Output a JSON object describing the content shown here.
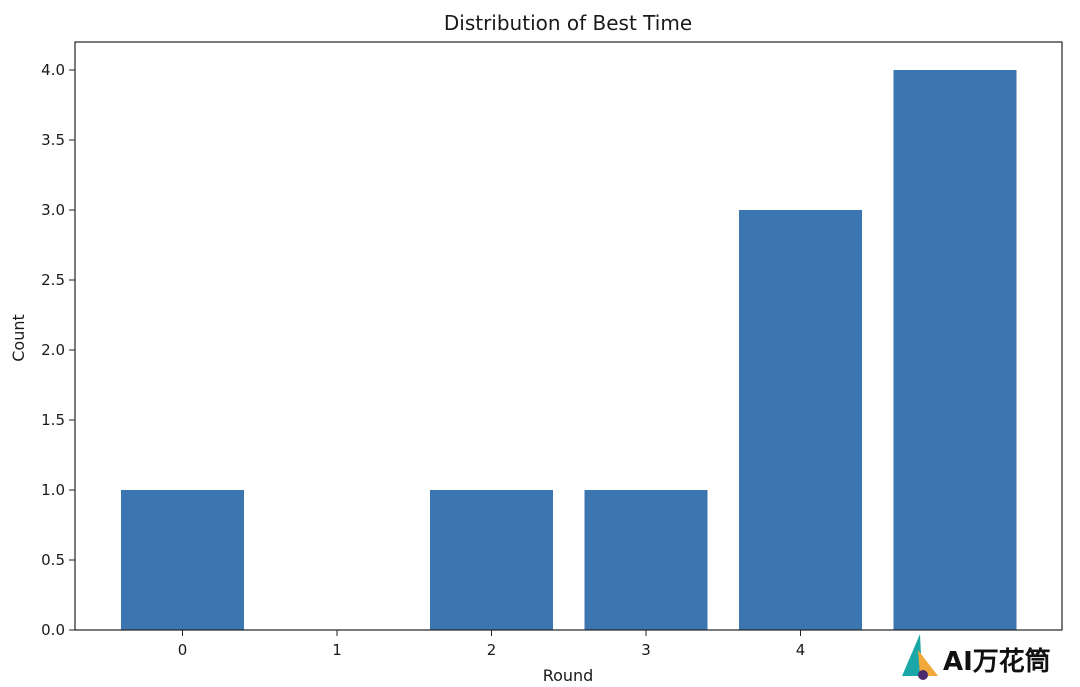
{
  "chart_data": {
    "type": "bar",
    "title": "Distribution of Best Time",
    "xlabel": "Round",
    "ylabel": "Count",
    "categories": [
      "0",
      "1",
      "2",
      "3",
      "4",
      "5"
    ],
    "values": [
      1,
      0,
      1,
      1,
      3,
      4
    ],
    "ylim": [
      0,
      4.2
    ],
    "yticks": [
      "0.0",
      "0.5",
      "1.0",
      "1.5",
      "2.0",
      "2.5",
      "3.0",
      "3.5",
      "4.0"
    ],
    "xticks": [
      "0",
      "1",
      "2",
      "3",
      "4"
    ],
    "bar_color": "#3c76b0",
    "grid": false
  },
  "watermark": {
    "text": "AI万花筒",
    "colors": [
      "#19a7a7",
      "#f2a93b",
      "#4a2b6b"
    ]
  }
}
